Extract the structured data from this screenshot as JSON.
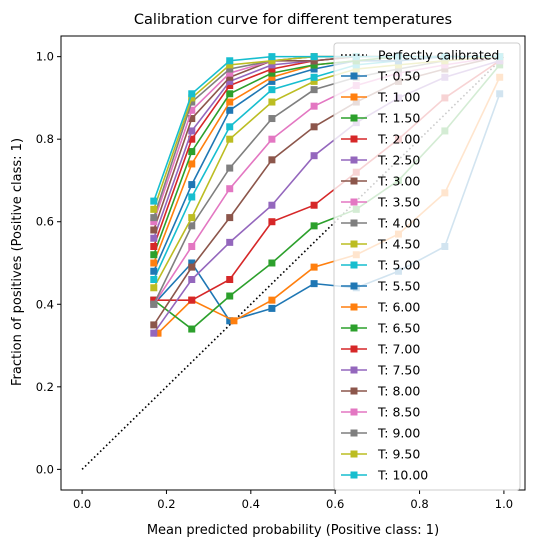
{
  "chart_data": {
    "type": "line",
    "title": "Calibration curve for different temperatures",
    "xlabel": "Mean predicted probability (Positive class: 1)",
    "ylabel": "Fraction of positives (Positive class: 1)",
    "xlim": [
      -0.05,
      1.05
    ],
    "ylim": [
      -0.05,
      1.05
    ],
    "x_ticks": [
      "0.0",
      "0.2",
      "0.4",
      "0.6",
      "0.8",
      "1.0"
    ],
    "y_ticks": [
      "0.0",
      "0.2",
      "0.4",
      "0.6",
      "0.8",
      "1.0"
    ],
    "legend_position": "right",
    "reference_line": {
      "name": "Perfectly calibrated",
      "x": [
        0,
        1
      ],
      "y": [
        0,
        1
      ],
      "style": "dotted",
      "color": "#000000"
    },
    "series": [
      {
        "name": "T: 0.50",
        "color": "#1f77b4",
        "x": [
          0.17,
          0.26,
          0.35,
          0.45,
          0.55,
          0.65,
          0.75,
          0.86,
          0.99
        ],
        "y": [
          0.4,
          0.5,
          0.36,
          0.39,
          0.45,
          0.44,
          0.48,
          0.54,
          0.91
        ]
      },
      {
        "name": "T: 1.00",
        "color": "#ff7f0e",
        "x": [
          0.18,
          0.26,
          0.36,
          0.45,
          0.55,
          0.65,
          0.75,
          0.86,
          0.99
        ],
        "y": [
          0.33,
          0.41,
          0.36,
          0.41,
          0.49,
          0.52,
          0.57,
          0.67,
          0.95
        ]
      },
      {
        "name": "T: 1.50",
        "color": "#2ca02c",
        "x": [
          0.17,
          0.26,
          0.35,
          0.45,
          0.55,
          0.65,
          0.75,
          0.86,
          0.99
        ],
        "y": [
          0.41,
          0.34,
          0.42,
          0.5,
          0.59,
          0.63,
          0.7,
          0.82,
          0.98
        ]
      },
      {
        "name": "T: 2.00",
        "color": "#d62728",
        "x": [
          0.17,
          0.26,
          0.35,
          0.45,
          0.55,
          0.65,
          0.75,
          0.86,
          0.99
        ],
        "y": [
          0.41,
          0.41,
          0.46,
          0.6,
          0.64,
          0.72,
          0.8,
          0.9,
          0.99
        ]
      },
      {
        "name": "T: 2.50",
        "color": "#9467bd",
        "x": [
          0.17,
          0.26,
          0.35,
          0.45,
          0.55,
          0.65,
          0.75,
          0.86,
          0.99
        ],
        "y": [
          0.33,
          0.46,
          0.55,
          0.64,
          0.76,
          0.84,
          0.9,
          0.95,
          0.99
        ]
      },
      {
        "name": "T: 3.00",
        "color": "#8c564b",
        "x": [
          0.17,
          0.26,
          0.35,
          0.45,
          0.55,
          0.65,
          0.75,
          0.86,
          0.99
        ],
        "y": [
          0.35,
          0.49,
          0.61,
          0.75,
          0.83,
          0.89,
          0.94,
          0.97,
          1.0
        ]
      },
      {
        "name": "T: 3.50",
        "color": "#e377c2",
        "x": [
          0.17,
          0.26,
          0.35,
          0.45,
          0.55,
          0.65,
          0.75,
          0.86,
          0.99
        ],
        "y": [
          0.4,
          0.54,
          0.68,
          0.8,
          0.88,
          0.93,
          0.96,
          0.98,
          1.0
        ]
      },
      {
        "name": "T: 4.00",
        "color": "#7f7f7f",
        "x": [
          0.17,
          0.26,
          0.35,
          0.45,
          0.55,
          0.65,
          0.75,
          0.86,
          0.99
        ],
        "y": [
          0.4,
          0.59,
          0.73,
          0.85,
          0.92,
          0.95,
          0.97,
          0.99,
          1.0
        ]
      },
      {
        "name": "T: 4.50",
        "color": "#bcbd22",
        "x": [
          0.17,
          0.26,
          0.35,
          0.45,
          0.55,
          0.65,
          0.75,
          0.86,
          0.99
        ],
        "y": [
          0.44,
          0.61,
          0.8,
          0.89,
          0.94,
          0.97,
          0.98,
          0.99,
          1.0
        ]
      },
      {
        "name": "T: 5.00",
        "color": "#17becf",
        "x": [
          0.17,
          0.26,
          0.35,
          0.45,
          0.55,
          0.65,
          0.75,
          0.86,
          0.99
        ],
        "y": [
          0.46,
          0.66,
          0.83,
          0.92,
          0.95,
          0.98,
          0.99,
          1.0,
          1.0
        ]
      },
      {
        "name": "T: 5.50",
        "color": "#1f77b4",
        "x": [
          0.17,
          0.26,
          0.35,
          0.45,
          0.55,
          0.65,
          0.75,
          0.86,
          0.99
        ],
        "y": [
          0.48,
          0.69,
          0.87,
          0.94,
          0.97,
          0.99,
          0.99,
          1.0,
          1.0
        ]
      },
      {
        "name": "T: 6.00",
        "color": "#ff7f0e",
        "x": [
          0.17,
          0.26,
          0.35,
          0.45,
          0.55,
          0.65,
          0.75,
          0.86,
          0.99
        ],
        "y": [
          0.5,
          0.74,
          0.89,
          0.95,
          0.98,
          0.99,
          1.0,
          1.0,
          1.0
        ]
      },
      {
        "name": "T: 6.50",
        "color": "#2ca02c",
        "x": [
          0.17,
          0.26,
          0.35,
          0.45,
          0.55,
          0.65,
          0.75,
          0.86,
          0.99
        ],
        "y": [
          0.52,
          0.77,
          0.91,
          0.96,
          0.98,
          0.99,
          1.0,
          1.0,
          1.0
        ]
      },
      {
        "name": "T: 7.00",
        "color": "#d62728",
        "x": [
          0.17,
          0.26,
          0.35,
          0.45,
          0.55,
          0.65,
          0.75,
          0.86,
          0.99
        ],
        "y": [
          0.54,
          0.8,
          0.93,
          0.97,
          0.99,
          1.0,
          1.0,
          1.0,
          1.0
        ]
      },
      {
        "name": "T: 7.50",
        "color": "#9467bd",
        "x": [
          0.17,
          0.26,
          0.35,
          0.45,
          0.55,
          0.65,
          0.75,
          0.86,
          0.99
        ],
        "y": [
          0.56,
          0.82,
          0.94,
          0.98,
          0.99,
          1.0,
          1.0,
          1.0,
          1.0
        ]
      },
      {
        "name": "T: 8.00",
        "color": "#8c564b",
        "x": [
          0.17,
          0.26,
          0.35,
          0.45,
          0.55,
          0.65,
          0.75,
          0.86,
          0.99
        ],
        "y": [
          0.58,
          0.85,
          0.95,
          0.99,
          0.99,
          1.0,
          1.0,
          1.0,
          1.0
        ]
      },
      {
        "name": "T: 8.50",
        "color": "#e377c2",
        "x": [
          0.17,
          0.26,
          0.35,
          0.45,
          0.55,
          0.65,
          0.75,
          0.86,
          0.99
        ],
        "y": [
          0.6,
          0.87,
          0.96,
          0.99,
          1.0,
          1.0,
          1.0,
          1.0,
          1.0
        ]
      },
      {
        "name": "T: 9.00",
        "color": "#7f7f7f",
        "x": [
          0.17,
          0.26,
          0.35,
          0.45,
          0.55,
          0.65,
          0.75,
          0.86,
          0.99
        ],
        "y": [
          0.61,
          0.89,
          0.97,
          0.99,
          1.0,
          1.0,
          1.0,
          1.0,
          1.0
        ]
      },
      {
        "name": "T: 9.50",
        "color": "#bcbd22",
        "x": [
          0.17,
          0.26,
          0.35,
          0.45,
          0.55,
          0.65,
          0.75,
          0.86,
          0.99
        ],
        "y": [
          0.63,
          0.9,
          0.98,
          0.99,
          1.0,
          1.0,
          1.0,
          1.0,
          1.0
        ]
      },
      {
        "name": "T: 10.00",
        "color": "#17becf",
        "x": [
          0.17,
          0.26,
          0.35,
          0.45,
          0.55,
          0.65,
          0.75,
          0.86,
          0.99
        ],
        "y": [
          0.65,
          0.91,
          0.99,
          1.0,
          1.0,
          1.0,
          1.0,
          1.0,
          1.0
        ]
      }
    ]
  }
}
